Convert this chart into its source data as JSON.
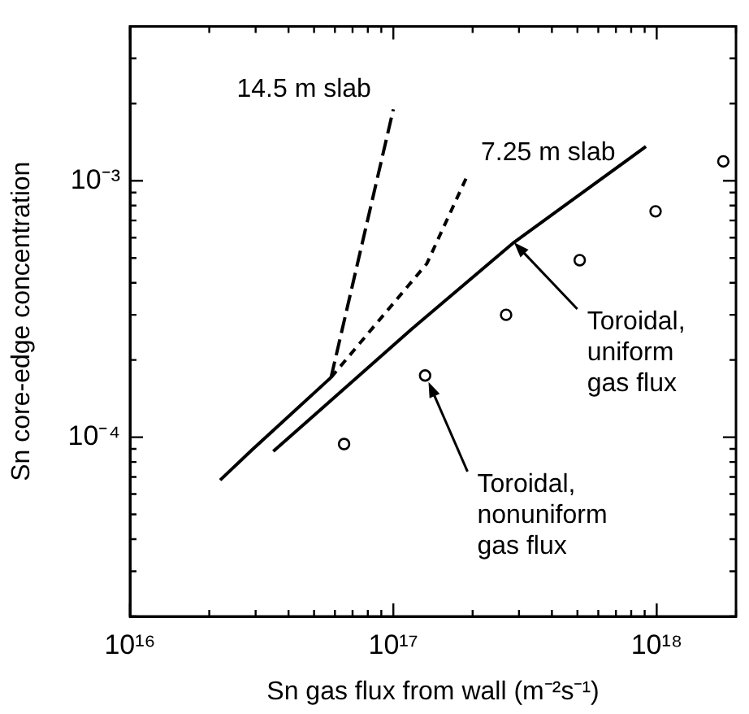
{
  "chart_data": {
    "type": "line",
    "xlabel": "Sn gas flux from wall (m⁻²s⁻¹)",
    "ylabel": "Sn core-edge concentration",
    "log": "xy",
    "grid": false,
    "legend": false,
    "xlim": [
      1e+16,
      2e+18
    ],
    "xticks": [
      {
        "value": 1e+16,
        "label": "10¹⁶"
      },
      {
        "value": 2e+16,
        "label": null
      },
      {
        "value": 3e+16,
        "label": null
      },
      {
        "value": 4e+16,
        "label": null
      },
      {
        "value": 5e+16,
        "label": null
      },
      {
        "value": 6e+16,
        "label": null
      },
      {
        "value": 7e+16,
        "label": null
      },
      {
        "value": 8e+16,
        "label": null
      },
      {
        "value": 9e+16,
        "label": null
      },
      {
        "value": 1e+17,
        "label": "10¹⁷"
      },
      {
        "value": 2e+17,
        "label": null
      },
      {
        "value": 3e+17,
        "label": null
      },
      {
        "value": 4e+17,
        "label": null
      },
      {
        "value": 5e+17,
        "label": null
      },
      {
        "value": 6e+17,
        "label": null
      },
      {
        "value": 7e+17,
        "label": null
      },
      {
        "value": 8e+17,
        "label": null
      },
      {
        "value": 9e+17,
        "label": null
      },
      {
        "value": 1e+18,
        "label": "10¹⁸"
      },
      {
        "value": 2e+18,
        "label": null
      }
    ],
    "ylim": [
      2e-05,
      0.004
    ],
    "yticks": [
      {
        "value": 2e-05,
        "label": null
      },
      {
        "value": 3e-05,
        "label": null
      },
      {
        "value": 4e-05,
        "label": null
      },
      {
        "value": 5e-05,
        "label": null
      },
      {
        "value": 6e-05,
        "label": null
      },
      {
        "value": 7e-05,
        "label": null
      },
      {
        "value": 8e-05,
        "label": null
      },
      {
        "value": 9e-05,
        "label": null
      },
      {
        "value": 0.0001,
        "label": "10⁻⁴"
      },
      {
        "value": 0.0002,
        "label": null
      },
      {
        "value": 0.0003,
        "label": null
      },
      {
        "value": 0.0004,
        "label": null
      },
      {
        "value": 0.0005,
        "label": null
      },
      {
        "value": 0.0006,
        "label": null
      },
      {
        "value": 0.0007,
        "label": null
      },
      {
        "value": 0.0008,
        "label": null
      },
      {
        "value": 0.0009,
        "label": null
      },
      {
        "value": 0.001,
        "label": "10⁻³"
      },
      {
        "value": 0.002,
        "label": null
      },
      {
        "value": 0.003,
        "label": null
      },
      {
        "value": 0.004,
        "label": null
      }
    ],
    "series": [
      {
        "type": "line",
        "color": "#000000",
        "line_style": "solid",
        "marker": "none",
        "x": [
          2.2e+16,
          2.9e+16,
          5.8e+16
        ],
        "values": [
          6.8e-05,
          8.9e-05,
          0.000171
        ]
      },
      {
        "type": "line",
        "name": "14.5 m slab",
        "color": "#000000",
        "line_style": "dashed",
        "marker": "none",
        "x": [
          5.8e+16,
          1e+17
        ],
        "values": [
          0.000171,
          0.0019
        ]
      },
      {
        "type": "line",
        "name": "7.25 m slab",
        "color": "#000000",
        "line_style": "dotted",
        "marker": "none",
        "x": [
          5.8e+16,
          1.34e+17,
          1.92e+17
        ],
        "values": [
          0.000171,
          0.000475,
          0.00106
        ]
      },
      {
        "type": "line",
        "color": "#000000",
        "line_style": "solid",
        "marker": "none",
        "x": [
          3.5e+16,
          1.18e+17,
          2.87e+17,
          9.1e+17
        ],
        "values": [
          8.8e-05,
          0.000265,
          0.000575,
          0.00136
        ]
      },
      {
        "type": "scatter",
        "color": "#000000",
        "marker": "circle",
        "x": [
          6.5e+16,
          1.32e+17,
          2.68e+17,
          5.1e+17,
          9.9e+17,
          1.79e+18
        ],
        "values": [
          9.4e-05,
          0.000174,
          0.0003,
          0.00049,
          0.00076,
          0.00119
        ]
      }
    ],
    "annotations": [
      {
        "text": "Toroidal,\nuniform\ngas flux",
        "x": 2.87e+17,
        "y": 0.000575
      },
      {
        "text": "Toroidal,\nnonuniform\ngas flux",
        "x": 1.36e+17,
        "y": 0.000164
      }
    ]
  }
}
